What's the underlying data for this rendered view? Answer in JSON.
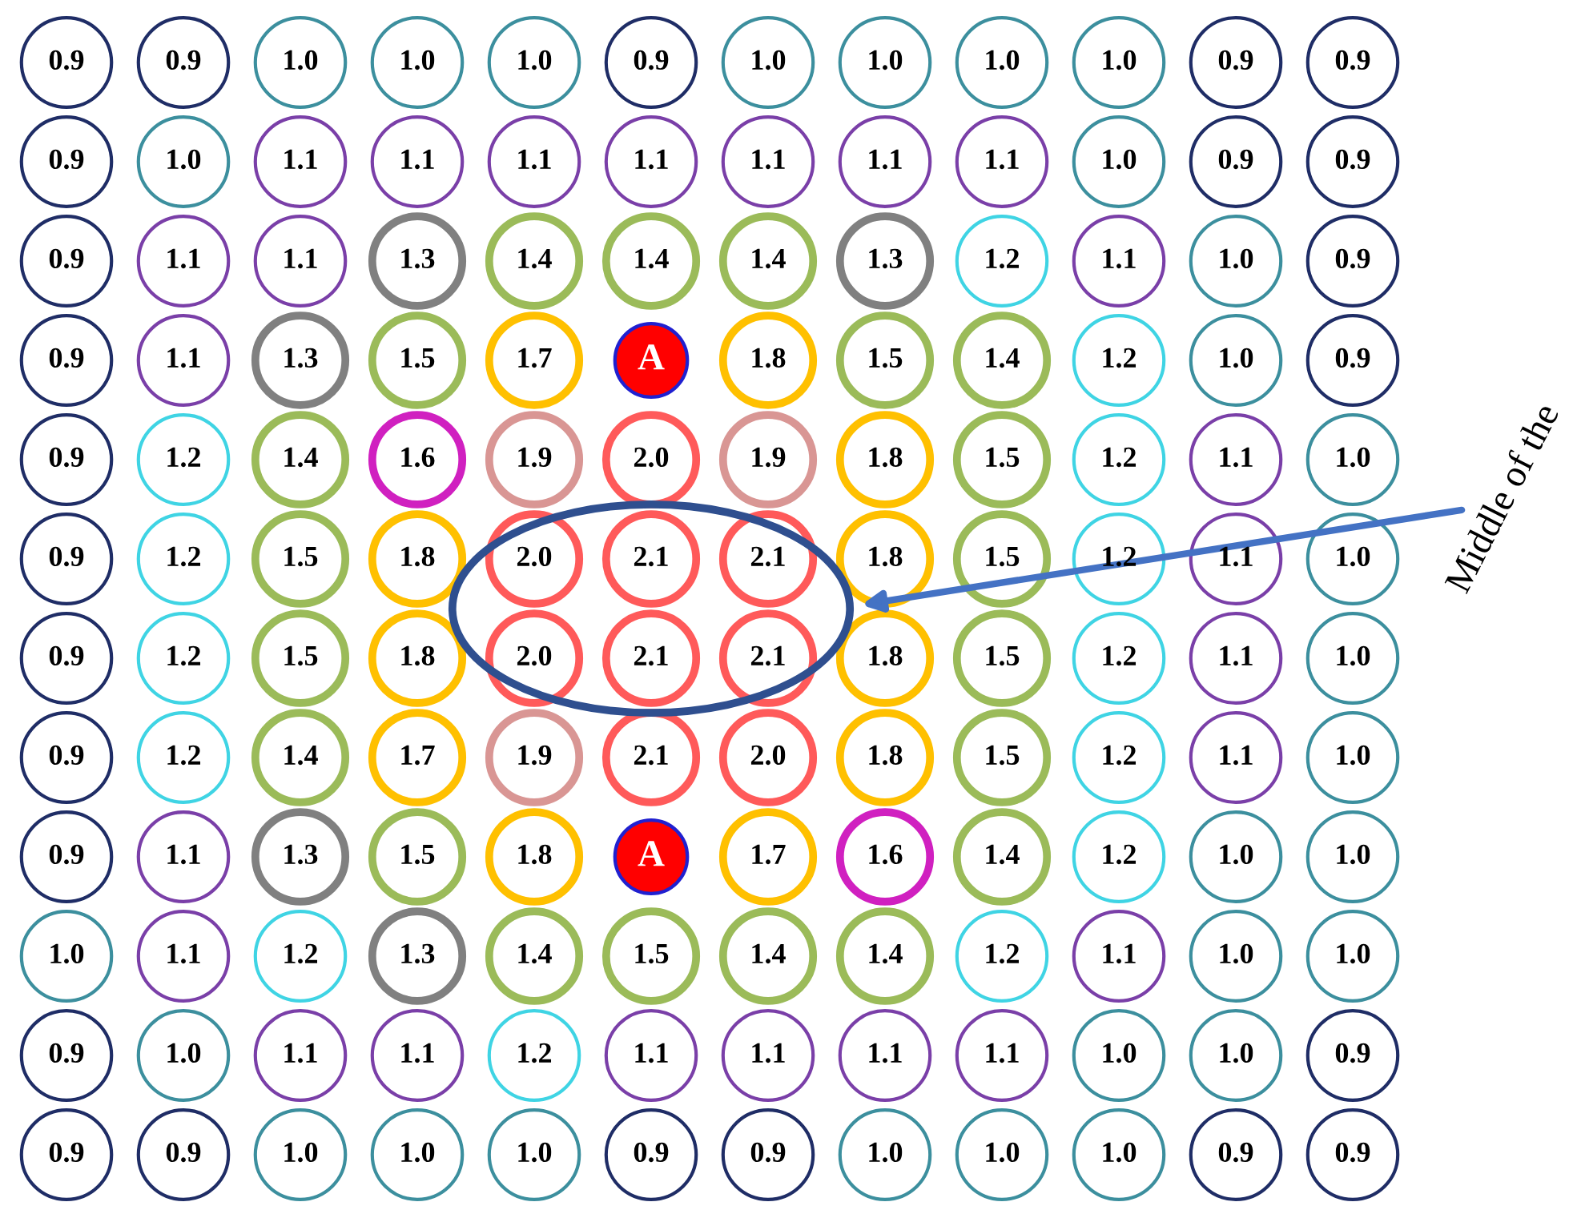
{
  "chart_data": {
    "type": "heatmap",
    "categories": [
      null,
      null,
      null,
      null,
      null,
      null,
      null,
      null,
      null,
      null,
      null,
      null
    ],
    "y_categories": [
      null,
      null,
      null,
      null,
      null,
      null,
      null,
      null,
      null,
      null,
      null,
      null
    ],
    "cells": [
      [
        0.9,
        0.9,
        1.0,
        1.0,
        1.0,
        0.9,
        1.0,
        1.0,
        1.0,
        1.0,
        0.9,
        0.9
      ],
      [
        0.9,
        1.0,
        1.1,
        1.1,
        1.1,
        1.1,
        1.1,
        1.1,
        1.1,
        1.0,
        0.9,
        0.9
      ],
      [
        0.9,
        1.1,
        1.1,
        1.3,
        1.4,
        1.4,
        1.4,
        1.3,
        1.2,
        1.1,
        1.0,
        0.9
      ],
      [
        0.9,
        1.1,
        1.3,
        1.5,
        1.7,
        null,
        1.8,
        1.5,
        1.4,
        1.2,
        1.0,
        0.9
      ],
      [
        0.9,
        1.2,
        1.4,
        1.6,
        1.9,
        2.0,
        1.9,
        1.8,
        1.5,
        1.2,
        1.1,
        1.0
      ],
      [
        0.9,
        1.2,
        1.5,
        1.8,
        2.0,
        2.1,
        2.1,
        1.8,
        1.5,
        1.2,
        1.1,
        1.0
      ],
      [
        0.9,
        1.2,
        1.5,
        1.8,
        2.0,
        2.1,
        2.1,
        1.8,
        1.5,
        1.2,
        1.1,
        1.0
      ],
      [
        0.9,
        1.2,
        1.4,
        1.7,
        1.9,
        2.1,
        2.0,
        1.8,
        1.5,
        1.2,
        1.1,
        1.0
      ],
      [
        0.9,
        1.1,
        1.3,
        1.5,
        1.8,
        null,
        1.7,
        1.6,
        1.4,
        1.2,
        1.0,
        1.0
      ],
      [
        1.0,
        1.1,
        1.2,
        1.3,
        1.4,
        1.5,
        1.4,
        1.4,
        1.2,
        1.1,
        1.0,
        1.0
      ],
      [
        0.9,
        1.0,
        1.1,
        1.1,
        1.2,
        1.1,
        1.1,
        1.1,
        1.1,
        1.0,
        1.0,
        0.9
      ],
      [
        0.9,
        0.9,
        1.0,
        1.0,
        1.0,
        0.9,
        0.9,
        1.0,
        1.0,
        1.0,
        0.9,
        0.9
      ]
    ],
    "cell_labels": [
      [
        "0.9",
        "0.9",
        "1.0",
        "1.0",
        "1.0",
        "0.9",
        "1.0",
        "1.0",
        "1.0",
        "1.0",
        "0.9",
        "0.9"
      ],
      [
        "0.9",
        "1.0",
        "1.1",
        "1.1",
        "1.1",
        "1.1",
        "1.1",
        "1.1",
        "1.1",
        "1.0",
        "0.9",
        "0.9"
      ],
      [
        "0.9",
        "1.1",
        "1.1",
        "1.3",
        "1.4",
        "1.4",
        "1.4",
        "1.3",
        "1.2",
        "1.1",
        "1.0",
        "0.9"
      ],
      [
        "0.9",
        "1.1",
        "1.3",
        "1.5",
        "1.7",
        "A",
        "1.8",
        "1.5",
        "1.4",
        "1.2",
        "1.0",
        "0.9"
      ],
      [
        "0.9",
        "1.2",
        "1.4",
        "1.6",
        "1.9",
        "2.0",
        "1.9",
        "1.8",
        "1.5",
        "1.2",
        "1.1",
        "1.0"
      ],
      [
        "0.9",
        "1.2",
        "1.5",
        "1.8",
        "2.0",
        "2.1",
        "2.1",
        "1.8",
        "1.5",
        "1.2",
        "1.1",
        "1.0"
      ],
      [
        "0.9",
        "1.2",
        "1.5",
        "1.8",
        "2.0",
        "2.1",
        "2.1",
        "1.8",
        "1.5",
        "1.2",
        "1.1",
        "1.0"
      ],
      [
        "0.9",
        "1.2",
        "1.4",
        "1.7",
        "1.9",
        "2.1",
        "2.0",
        "1.8",
        "1.5",
        "1.2",
        "1.1",
        "1.0"
      ],
      [
        "0.9",
        "1.1",
        "1.3",
        "1.5",
        "1.8",
        "A",
        "1.7",
        "1.6",
        "1.4",
        "1.2",
        "1.0",
        "1.0"
      ],
      [
        "1.0",
        "1.1",
        "1.2",
        "1.3",
        "1.4",
        "1.5",
        "1.4",
        "1.4",
        "1.2",
        "1.1",
        "1.0",
        "1.0"
      ],
      [
        "0.9",
        "1.0",
        "1.1",
        "1.1",
        "1.2",
        "1.1",
        "1.1",
        "1.1",
        "1.1",
        "1.0",
        "1.0",
        "0.9"
      ],
      [
        "0.9",
        "0.9",
        "1.0",
        "1.0",
        "1.0",
        "0.9",
        "0.9",
        "1.0",
        "1.0",
        "1.0",
        "0.9",
        "0.9"
      ]
    ],
    "annotations": [
      "Middle of the"
    ]
  }
}
